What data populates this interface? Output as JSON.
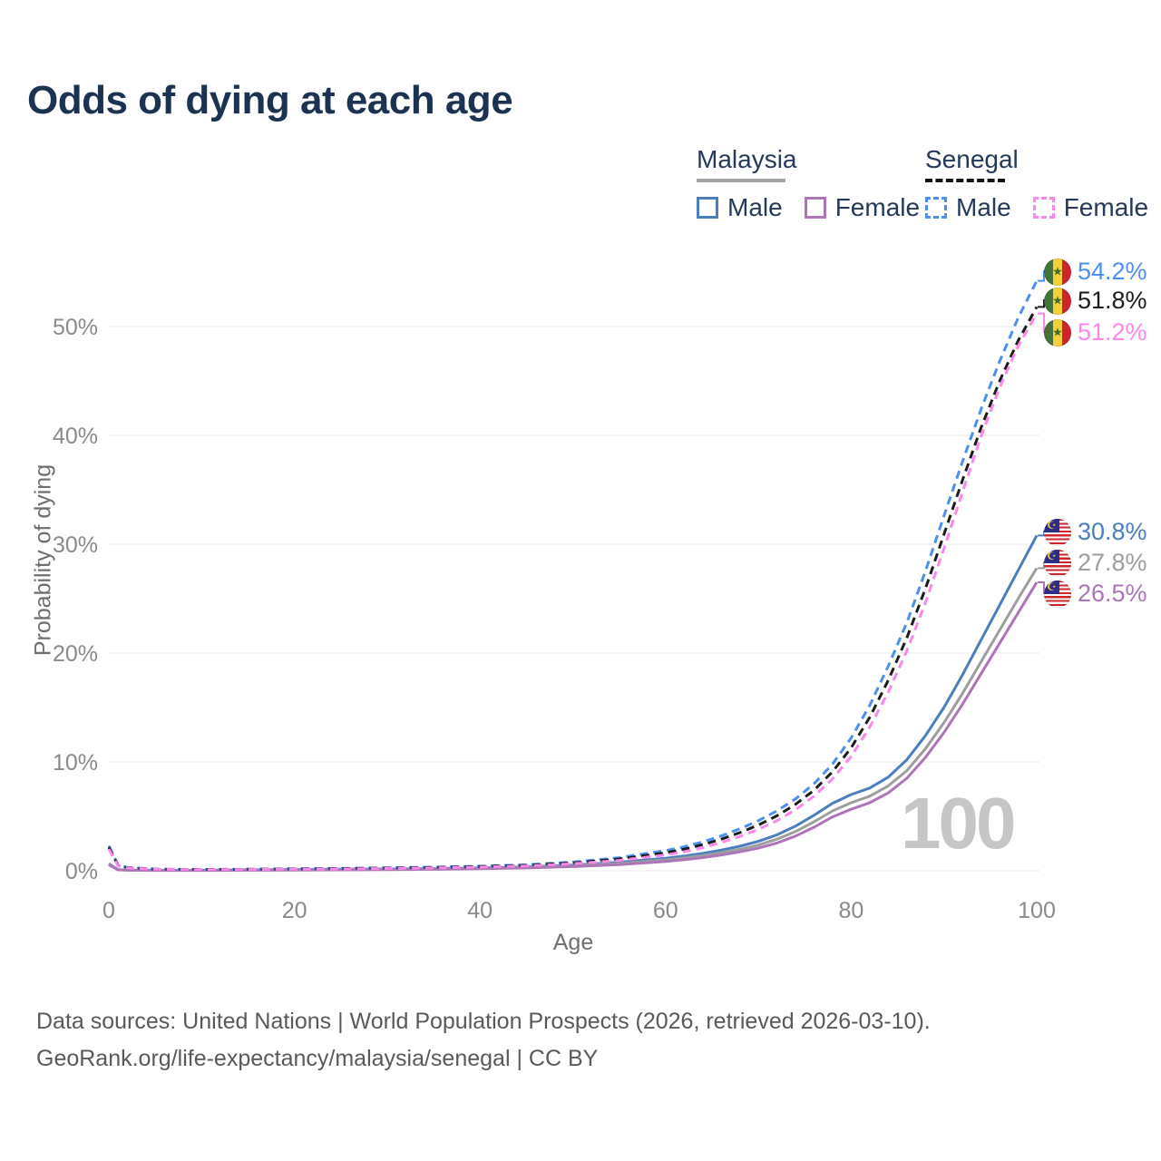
{
  "title": "Odds of dying at each age",
  "watermark": "100",
  "legend": {
    "groups": [
      {
        "label": "Malaysia",
        "line_style": "solid",
        "line_color": "#a3a3a3",
        "items": [
          {
            "label": "Male",
            "color": "#4a7ebf"
          },
          {
            "label": "Female",
            "color": "#ad74b7"
          }
        ]
      },
      {
        "label": "Senegal",
        "line_style": "dashed",
        "line_color": "#131313",
        "items": [
          {
            "label": "Male",
            "color": "#4a90f2"
          },
          {
            "label": "Female",
            "color": "#fa87e9"
          }
        ]
      }
    ]
  },
  "axes": {
    "x": {
      "title": "Age",
      "ticks": [
        0,
        20,
        40,
        60,
        80,
        100
      ],
      "min": 0,
      "max": 100
    },
    "y": {
      "title": "Probability of dying",
      "tick_labels": [
        "0%",
        "10%",
        "20%",
        "30%",
        "40%",
        "50%"
      ],
      "tick_values": [
        0,
        10,
        20,
        30,
        40,
        50
      ],
      "min": 0,
      "max": 55
    }
  },
  "footer": {
    "line1": "Data sources: United Nations | World Population Prospects (2026, retrieved 2026-03-10).",
    "line2": "GeoRank.org/life-expectancy/malaysia/senegal | CC BY"
  },
  "chart_data": {
    "type": "line",
    "xlabel": "Age",
    "ylabel": "Probability of dying",
    "xlim": [
      0,
      100
    ],
    "ylim_percent": [
      0,
      55
    ],
    "grid": "horizontal",
    "x": [
      0,
      1,
      2,
      5,
      10,
      15,
      20,
      25,
      30,
      35,
      40,
      45,
      50,
      55,
      60,
      62,
      64,
      66,
      68,
      70,
      72,
      74,
      76,
      78,
      80,
      82,
      84,
      86,
      88,
      90,
      92,
      94,
      96,
      98,
      100
    ],
    "series": [
      {
        "name": "Malaysia Male",
        "country": "Malaysia",
        "sex": "male",
        "color": "#4a7ebf",
        "line_style": "solid",
        "end_label": "30.8%",
        "end_value": 30.8,
        "flag_icon": "malaysia-flag-icon",
        "values": [
          0.65,
          0.1,
          0.06,
          0.04,
          0.04,
          0.08,
          0.12,
          0.14,
          0.16,
          0.2,
          0.26,
          0.36,
          0.52,
          0.78,
          1.15,
          1.35,
          1.6,
          1.9,
          2.25,
          2.7,
          3.3,
          4.1,
          5.1,
          6.2,
          7.0,
          7.6,
          8.6,
          10.2,
          12.4,
          15.0,
          18.0,
          21.2,
          24.4,
          27.6,
          30.8
        ]
      },
      {
        "name": "Malaysia Combined",
        "country": "Malaysia",
        "sex": "combined",
        "color": "#9d9d9d",
        "line_style": "solid",
        "end_label": "27.8%",
        "end_value": 27.8,
        "flag_icon": "malaysia-flag-icon",
        "values": [
          0.6,
          0.09,
          0.06,
          0.04,
          0.04,
          0.06,
          0.09,
          0.11,
          0.13,
          0.17,
          0.22,
          0.31,
          0.45,
          0.67,
          1.0,
          1.17,
          1.4,
          1.66,
          1.97,
          2.36,
          2.9,
          3.6,
          4.5,
          5.5,
          6.25,
          6.85,
          7.8,
          9.2,
          11.2,
          13.6,
          16.3,
          19.2,
          22.1,
          25.0,
          27.8
        ]
      },
      {
        "name": "Malaysia Female",
        "country": "Malaysia",
        "sex": "female",
        "color": "#ad74b7",
        "line_style": "solid",
        "end_label": "26.5%",
        "end_value": 26.5,
        "flag_icon": "malaysia-flag-icon",
        "values": [
          0.55,
          0.08,
          0.05,
          0.03,
          0.03,
          0.05,
          0.07,
          0.08,
          0.1,
          0.13,
          0.18,
          0.26,
          0.38,
          0.57,
          0.86,
          1.01,
          1.21,
          1.45,
          1.73,
          2.08,
          2.55,
          3.18,
          4.0,
          4.95,
          5.65,
          6.25,
          7.15,
          8.5,
          10.4,
          12.7,
          15.3,
          18.1,
          20.9,
          23.7,
          26.5
        ]
      },
      {
        "name": "Senegal Male",
        "country": "Senegal",
        "sex": "male",
        "color": "#4a90f2",
        "line_style": "dashed",
        "end_label": "54.2%",
        "end_value": 54.2,
        "flag_icon": "senegal-flag-icon",
        "values": [
          2.3,
          0.5,
          0.3,
          0.15,
          0.12,
          0.14,
          0.18,
          0.22,
          0.27,
          0.33,
          0.42,
          0.55,
          0.8,
          1.2,
          1.85,
          2.2,
          2.65,
          3.2,
          3.85,
          4.6,
          5.5,
          6.6,
          8.0,
          9.8,
          12.2,
          15.2,
          18.8,
          22.8,
          27.5,
          32.6,
          37.6,
          42.4,
          46.8,
          50.8,
          54.2
        ]
      },
      {
        "name": "Senegal Combined",
        "country": "Senegal",
        "sex": "combined",
        "color": "#1c1c1c",
        "line_style": "dashed",
        "end_label": "51.8%",
        "end_value": 51.8,
        "flag_icon": "senegal-flag-icon",
        "values": [
          2.15,
          0.48,
          0.28,
          0.14,
          0.11,
          0.13,
          0.16,
          0.2,
          0.24,
          0.3,
          0.38,
          0.5,
          0.72,
          1.08,
          1.65,
          1.98,
          2.4,
          2.9,
          3.5,
          4.2,
          5.05,
          6.1,
          7.4,
          9.1,
          11.3,
          14.1,
          17.5,
          21.4,
          25.9,
          30.9,
          35.9,
          40.7,
          45.0,
          48.7,
          51.8
        ]
      },
      {
        "name": "Senegal Female",
        "country": "Senegal",
        "sex": "female",
        "color": "#fa87e9",
        "line_style": "dashed",
        "end_label": "51.2%",
        "end_value": 51.2,
        "flag_icon": "senegal-flag-icon",
        "values": [
          2.0,
          0.45,
          0.26,
          0.13,
          0.1,
          0.12,
          0.14,
          0.17,
          0.21,
          0.26,
          0.33,
          0.44,
          0.64,
          0.95,
          1.45,
          1.75,
          2.12,
          2.6,
          3.15,
          3.8,
          4.6,
          5.6,
          6.85,
          8.45,
          10.5,
          13.2,
          16.4,
          20.2,
          24.6,
          29.6,
          34.8,
          39.9,
          44.4,
          48.2,
          51.2
        ]
      }
    ]
  }
}
